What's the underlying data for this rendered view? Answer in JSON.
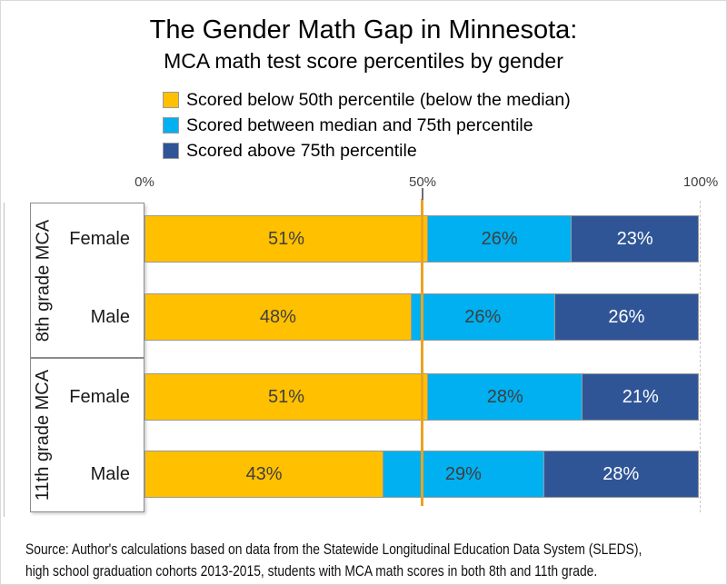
{
  "title": "The Gender Math Gap in Minnesota:",
  "subtitle": "MCA math test score percentiles by gender",
  "legend": [
    {
      "label": "Scored below 50th percentile (below the median)",
      "color": "#FFC000",
      "text_color": "#3f3f3f"
    },
    {
      "label": "Scored between median and 75th percentile",
      "color": "#00B0F0",
      "text_color": "#3f3f3f"
    },
    {
      "label": "Scored above 75th percentile",
      "color": "#2F5597",
      "text_color": "#FFFFFF"
    }
  ],
  "axis": {
    "ticks": [
      {
        "label": "0%",
        "pct": 0
      },
      {
        "label": "50%",
        "pct": 50
      },
      {
        "label": "100%",
        "pct": 100
      }
    ],
    "reference_line_pct": 50,
    "reference_line_color": "#EBA31F"
  },
  "chart_data": {
    "type": "bar",
    "stacked": true,
    "orientation": "horizontal",
    "title": "The Gender Math Gap in Minnesota: MCA math test score percentiles by gender",
    "xlim": [
      0,
      100
    ],
    "value_suffix": "%",
    "legend_position": "top",
    "series_names": [
      "Scored below 50th percentile (below the median)",
      "Scored between median and 75th percentile",
      "Scored above 75th percentile"
    ],
    "groups": [
      {
        "group": "8th grade MCA",
        "rows": [
          {
            "category": "Female",
            "values": [
              51,
              26,
              23
            ]
          },
          {
            "category": "Male",
            "values": [
              48,
              26,
              26
            ]
          }
        ]
      },
      {
        "group": "11th grade MCA",
        "rows": [
          {
            "category": "Female",
            "values": [
              51,
              28,
              21
            ]
          },
          {
            "category": "Male",
            "values": [
              43,
              29,
              28
            ]
          }
        ]
      }
    ]
  },
  "source_lines": [
    "Source: Author's calculations based on data from the Statewide Longitudinal Education Data System (SLEDS),",
    "high school graduation cohorts 2013-2015, students with MCA math scores in both 8th and 11th grade."
  ]
}
